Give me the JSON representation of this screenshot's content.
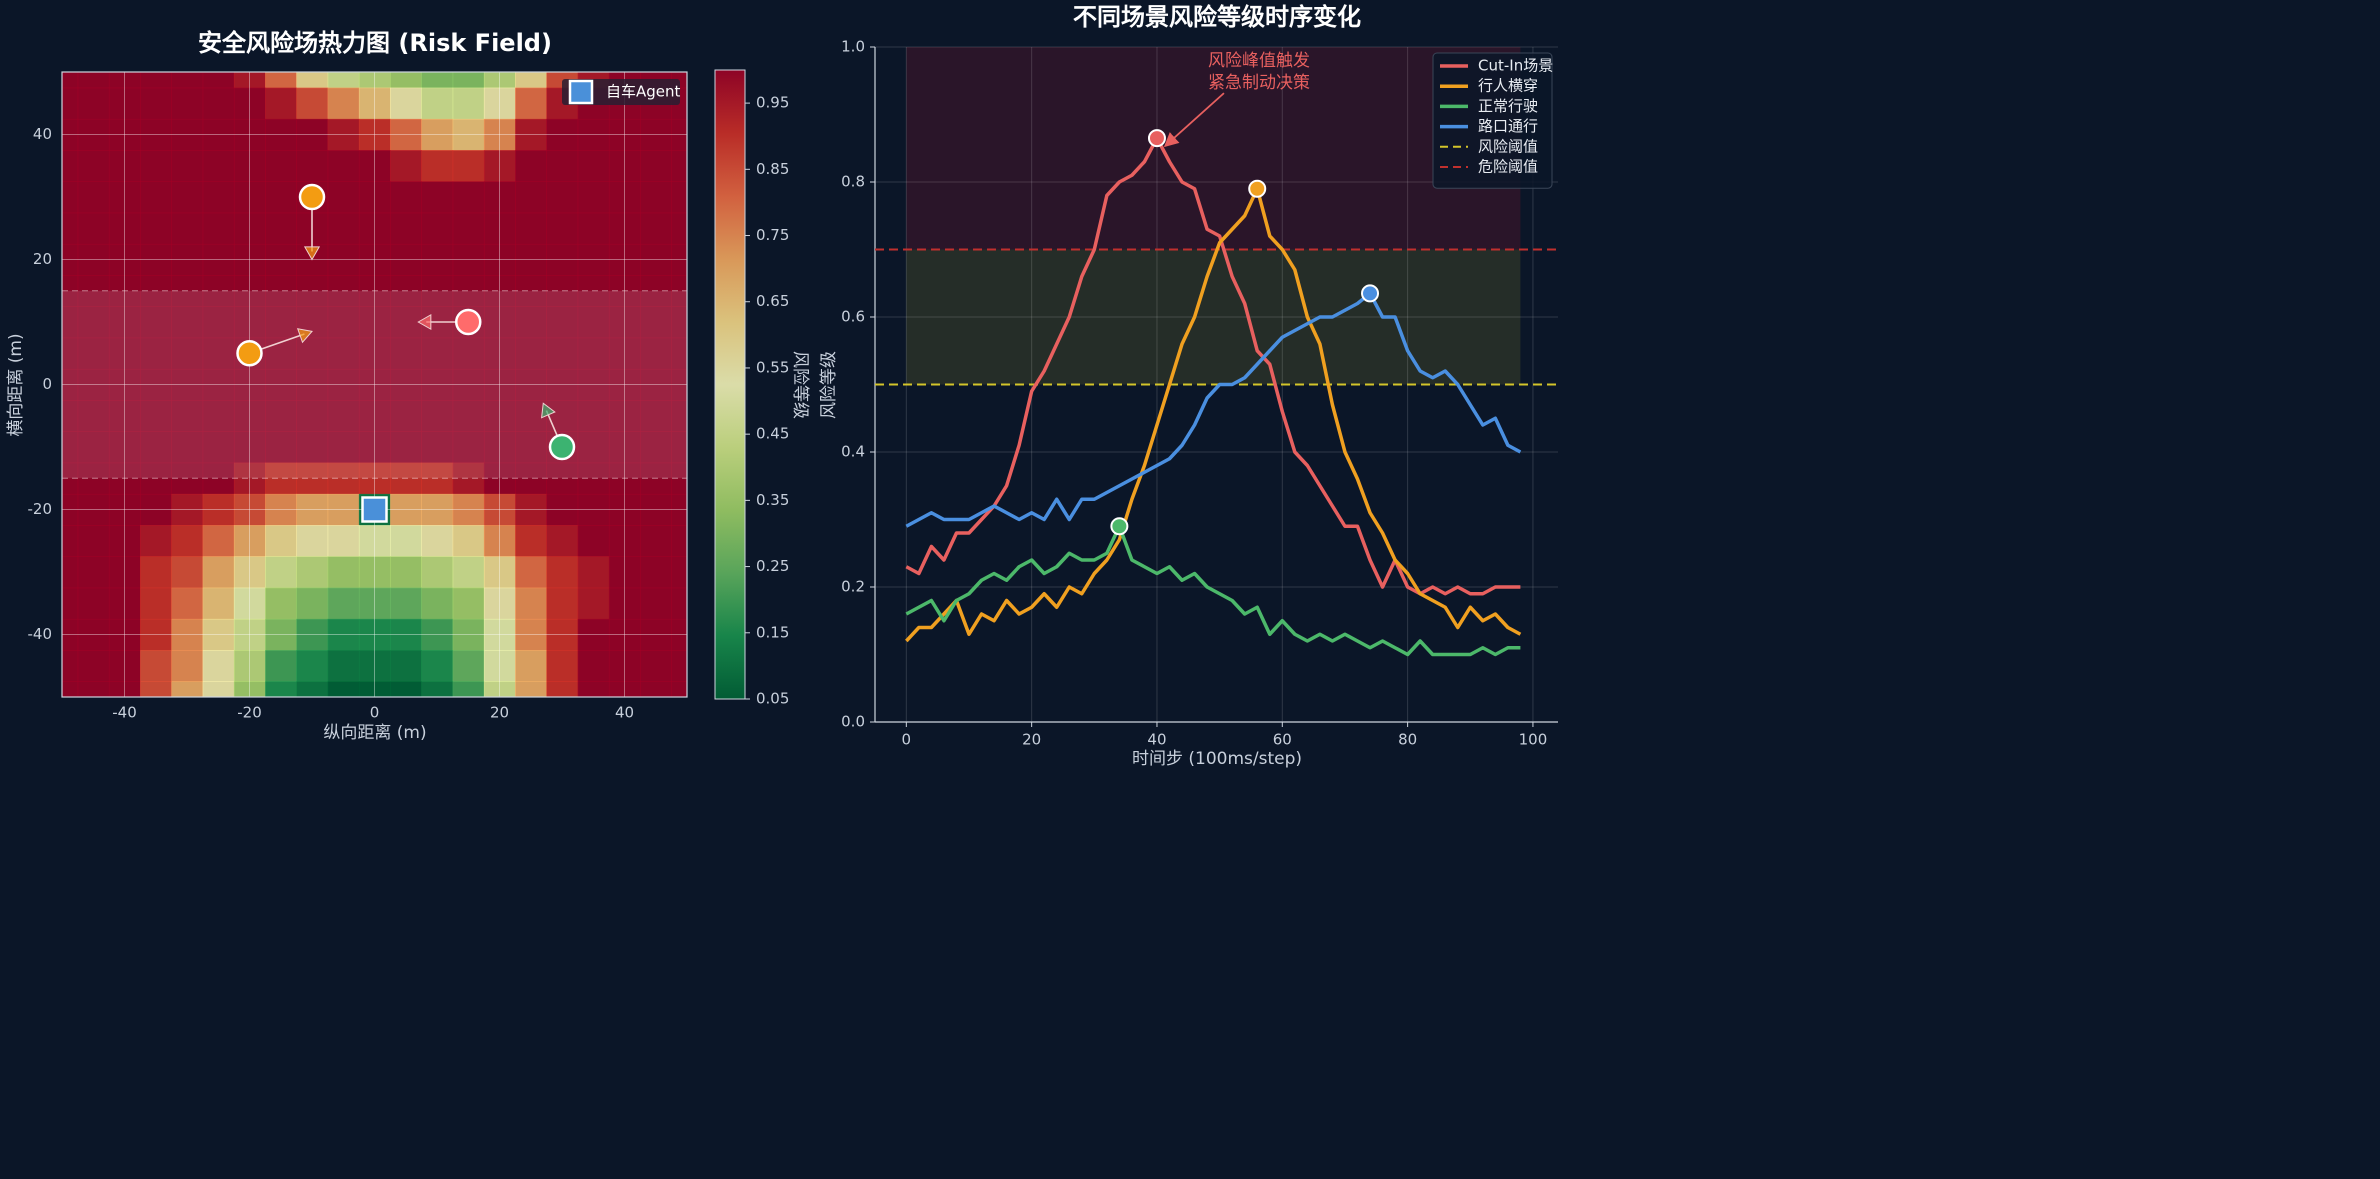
{
  "chart_data": [
    {
      "type": "heatmap",
      "title": "安全风险场热力图 (Risk Field)",
      "xlabel": "纵向距离 (m)",
      "ylabel": "横向距离 (m)",
      "colorbar_label": "风险等级",
      "xlim": [
        -50,
        50
      ],
      "ylim": [
        -50,
        50
      ],
      "xticks": [
        -40,
        -20,
        0,
        20,
        40
      ],
      "yticks": [
        -40,
        -20,
        0,
        20,
        40
      ],
      "grid": true,
      "clim": [
        0.05,
        1.0
      ],
      "cticks": [
        0.05,
        0.15,
        0.25,
        0.35,
        0.45,
        0.55,
        0.65,
        0.75,
        0.85,
        0.95
      ],
      "colormap": [
        "#006837",
        "#1a9850",
        "#66bd63",
        "#a6d96a",
        "#d9ef8b",
        "#ffffbf",
        "#fee08b",
        "#fdae61",
        "#f46d43",
        "#d73027",
        "#a50026"
      ],
      "lane": [
        -15,
        15
      ],
      "x": [
        -50,
        -45,
        -40,
        -35,
        -30,
        -25,
        -20,
        -15,
        -10,
        -5,
        0,
        5,
        10,
        15,
        20,
        25,
        30,
        35,
        40,
        45,
        50
      ],
      "y": [
        50,
        45,
        40,
        35,
        30,
        25,
        20,
        15,
        10,
        5,
        0,
        -5,
        -10,
        -15,
        -20,
        -25,
        -30,
        -35,
        -40,
        -45,
        -50
      ],
      "z": [
        [
          1,
          1,
          1,
          1,
          1,
          1,
          0.95,
          0.8,
          0.6,
          0.45,
          0.4,
          0.35,
          0.3,
          0.3,
          0.4,
          0.6,
          0.85,
          0.95,
          1,
          1,
          1
        ],
        [
          1,
          1,
          1,
          1,
          1,
          1,
          1,
          0.95,
          0.85,
          0.75,
          0.65,
          0.55,
          0.45,
          0.45,
          0.55,
          0.8,
          0.95,
          1,
          1,
          1,
          1
        ],
        [
          1,
          1,
          1,
          1,
          1,
          1,
          1,
          1,
          1,
          0.95,
          0.9,
          0.8,
          0.7,
          0.65,
          0.75,
          0.95,
          1,
          1,
          1,
          1,
          1
        ],
        [
          1,
          1,
          1,
          1,
          1,
          1,
          1,
          1,
          1,
          1,
          1,
          0.95,
          0.9,
          0.9,
          0.95,
          1,
          1,
          1,
          1,
          1,
          1
        ],
        [
          1,
          1,
          1,
          1,
          1,
          1,
          1,
          1,
          1,
          1,
          1,
          1,
          1,
          1,
          1,
          1,
          1,
          1,
          1,
          1,
          1
        ],
        [
          1,
          1,
          1,
          1,
          1,
          1,
          1,
          1,
          1,
          1,
          1,
          1,
          1,
          1,
          1,
          1,
          1,
          1,
          1,
          1,
          1
        ],
        [
          1,
          1,
          1,
          1,
          1,
          1,
          1,
          1,
          1,
          1,
          1,
          1,
          1,
          1,
          1,
          1,
          1,
          1,
          1,
          1,
          1
        ],
        [
          1,
          1,
          1,
          1,
          1,
          1,
          1,
          1,
          1,
          1,
          1,
          1,
          1,
          1,
          1,
          1,
          1,
          1,
          1,
          1,
          1
        ],
        [
          1,
          1,
          1,
          1,
          1,
          1,
          1,
          1,
          1,
          1,
          1,
          1,
          1,
          1,
          1,
          1,
          1,
          1,
          1,
          1,
          1
        ],
        [
          1,
          1,
          1,
          1,
          1,
          1,
          1,
          1,
          1,
          1,
          1,
          1,
          1,
          1,
          1,
          1,
          1,
          1,
          1,
          1,
          1
        ],
        [
          1,
          1,
          1,
          1,
          1,
          1,
          1,
          1,
          1,
          1,
          1,
          1,
          1,
          1,
          1,
          1,
          1,
          1,
          1,
          1,
          1
        ],
        [
          1,
          1,
          1,
          1,
          1,
          1,
          1,
          1,
          1,
          1,
          1,
          1,
          1,
          1,
          1,
          1,
          1,
          1,
          1,
          1,
          1
        ],
        [
          1,
          1,
          1,
          1,
          1,
          1,
          1,
          1,
          1,
          1,
          1,
          1,
          1,
          1,
          1,
          1,
          1,
          1,
          1,
          1,
          1
        ],
        [
          1,
          1,
          1,
          1,
          1,
          1,
          0.95,
          0.9,
          0.9,
          0.9,
          0.9,
          0.9,
          0.9,
          0.95,
          1,
          1,
          1,
          1,
          1,
          1,
          1
        ],
        [
          1,
          1,
          1,
          1,
          0.95,
          0.9,
          0.85,
          0.75,
          0.7,
          0.7,
          0.1,
          0.7,
          0.7,
          0.75,
          0.85,
          0.95,
          1,
          1,
          1,
          1,
          1
        ],
        [
          1,
          1,
          1,
          0.95,
          0.9,
          0.8,
          0.7,
          0.6,
          0.55,
          0.55,
          0.5,
          0.5,
          0.55,
          0.6,
          0.75,
          0.9,
          0.95,
          1,
          1,
          1,
          1
        ],
        [
          1,
          1,
          1,
          0.9,
          0.85,
          0.7,
          0.6,
          0.45,
          0.4,
          0.35,
          0.35,
          0.35,
          0.4,
          0.45,
          0.6,
          0.8,
          0.9,
          0.95,
          1,
          1,
          1
        ],
        [
          1,
          1,
          1,
          0.9,
          0.8,
          0.65,
          0.5,
          0.35,
          0.3,
          0.25,
          0.25,
          0.25,
          0.3,
          0.35,
          0.55,
          0.75,
          0.9,
          0.95,
          1,
          1,
          1
        ],
        [
          1,
          1,
          1,
          0.9,
          0.75,
          0.6,
          0.45,
          0.3,
          0.2,
          0.15,
          0.15,
          0.15,
          0.2,
          0.3,
          0.5,
          0.75,
          0.9,
          1,
          1,
          1,
          1
        ],
        [
          1,
          1,
          1,
          0.85,
          0.75,
          0.55,
          0.4,
          0.2,
          0.15,
          0.1,
          0.1,
          0.1,
          0.15,
          0.25,
          0.5,
          0.7,
          0.9,
          1,
          1,
          1,
          1
        ],
        [
          1,
          1,
          1,
          0.85,
          0.7,
          0.55,
          0.35,
          0.15,
          0.1,
          0.05,
          0.05,
          0.05,
          0.1,
          0.2,
          0.45,
          0.7,
          0.9,
          1,
          1,
          1,
          1
        ]
      ],
      "ego": {
        "name": "自车Agent",
        "x": 0,
        "y": -20,
        "color": "#4a90d9"
      },
      "legend": "upper right",
      "agents": [
        {
          "x": -10,
          "y": 30,
          "to_x": -10,
          "to_y": 20,
          "color": "#f39c12"
        },
        {
          "x": -20,
          "y": 5,
          "to_x": -10,
          "to_y": 8.5,
          "color": "#f39c12"
        },
        {
          "x": 15,
          "y": 10,
          "to_x": 7,
          "to_y": 10,
          "color": "#ff6b6b"
        },
        {
          "x": 30,
          "y": -10,
          "to_x": 27,
          "to_y": -3,
          "color": "#3cb371"
        }
      ]
    },
    {
      "type": "line",
      "title": "不同场景风险等级时序变化",
      "xlabel": "时间步 (100ms/step)",
      "ylabel": "风险等级",
      "annotation": [
        "风险峰值触发",
        "紧急制动决策"
      ],
      "xlim": [
        -5,
        104
      ],
      "ylim": [
        0,
        1
      ],
      "xticks": [
        0,
        20,
        40,
        60,
        80,
        100
      ],
      "yticks": [
        {
          "value": 0,
          "label": "0.0"
        },
        0.2,
        0.4,
        0.6,
        0.8,
        {
          "value": 1,
          "label": "1.0"
        }
      ],
      "grid": true,
      "legend": "upper right",
      "x": [
        0,
        2,
        4,
        6,
        8,
        10,
        12,
        14,
        16,
        18,
        20,
        22,
        24,
        26,
        28,
        30,
        32,
        34,
        36,
        38,
        40,
        42,
        44,
        46,
        48,
        50,
        52,
        54,
        56,
        58,
        60,
        62,
        64,
        66,
        68,
        70,
        72,
        74,
        76,
        78,
        80,
        82,
        84,
        86,
        88,
        90,
        92,
        94,
        96,
        98
      ],
      "series": [
        {
          "name": "Cut-In场景",
          "color": "#e8605f",
          "values": [
            0.23,
            0.22,
            0.26,
            0.24,
            0.28,
            0.28,
            0.3,
            0.32,
            0.35,
            0.41,
            0.49,
            0.52,
            0.56,
            0.6,
            0.66,
            0.7,
            0.78,
            0.8,
            0.81,
            0.83,
            0.865,
            0.83,
            0.8,
            0.79,
            0.73,
            0.72,
            0.66,
            0.62,
            0.55,
            0.53,
            0.46,
            0.4,
            0.38,
            0.35,
            0.32,
            0.29,
            0.29,
            0.24,
            0.2,
            0.24,
            0.2,
            0.19,
            0.2,
            0.19,
            0.2,
            0.19,
            0.19,
            0.2,
            0.2,
            0.2
          ]
        },
        {
          "name": "行人横穿",
          "color": "#f0a020",
          "values": [
            0.12,
            0.14,
            0.14,
            0.16,
            0.18,
            0.13,
            0.16,
            0.15,
            0.18,
            0.16,
            0.17,
            0.19,
            0.17,
            0.2,
            0.19,
            0.22,
            0.24,
            0.27,
            0.33,
            0.38,
            0.44,
            0.5,
            0.56,
            0.6,
            0.66,
            0.71,
            0.73,
            0.75,
            0.79,
            0.72,
            0.7,
            0.67,
            0.6,
            0.56,
            0.47,
            0.4,
            0.36,
            0.31,
            0.28,
            0.24,
            0.22,
            0.19,
            0.18,
            0.17,
            0.14,
            0.17,
            0.15,
            0.16,
            0.14,
            0.13
          ]
        },
        {
          "name": "正常行驶",
          "color": "#4cb86a",
          "values": [
            0.16,
            0.17,
            0.18,
            0.15,
            0.18,
            0.19,
            0.21,
            0.22,
            0.21,
            0.23,
            0.24,
            0.22,
            0.23,
            0.25,
            0.24,
            0.24,
            0.25,
            0.29,
            0.24,
            0.23,
            0.22,
            0.23,
            0.21,
            0.22,
            0.2,
            0.19,
            0.18,
            0.16,
            0.17,
            0.13,
            0.15,
            0.13,
            0.12,
            0.13,
            0.12,
            0.13,
            0.12,
            0.11,
            0.12,
            0.11,
            0.1,
            0.12,
            0.1,
            0.1,
            0.1,
            0.1,
            0.11,
            0.1,
            0.11,
            0.11
          ]
        },
        {
          "name": "路口通行",
          "color": "#4a8fe0",
          "values": [
            0.29,
            0.3,
            0.31,
            0.3,
            0.3,
            0.3,
            0.31,
            0.32,
            0.31,
            0.3,
            0.31,
            0.3,
            0.33,
            0.3,
            0.33,
            0.33,
            0.34,
            0.35,
            0.36,
            0.37,
            0.38,
            0.39,
            0.41,
            0.44,
            0.48,
            0.5,
            0.5,
            0.51,
            0.53,
            0.55,
            0.57,
            0.58,
            0.59,
            0.6,
            0.6,
            0.61,
            0.62,
            0.635,
            0.6,
            0.6,
            0.55,
            0.52,
            0.51,
            0.52,
            0.5,
            0.47,
            0.44,
            0.45,
            0.41,
            0.4
          ]
        }
      ],
      "thresholds": [
        {
          "name": "风险阈值",
          "value": 0.5,
          "color": "#d4c52a"
        },
        {
          "name": "危险阈值",
          "value": 0.7,
          "color": "#c0302e"
        }
      ]
    }
  ]
}
